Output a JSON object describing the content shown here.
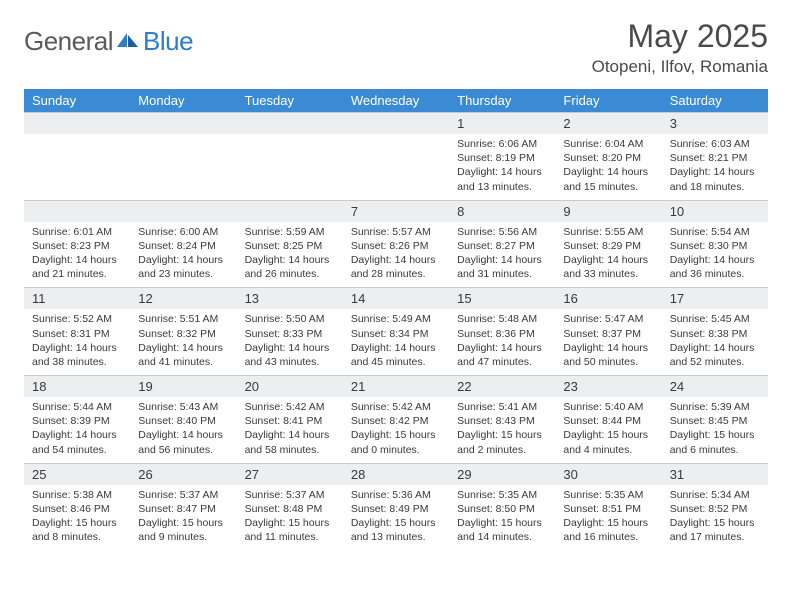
{
  "brand": {
    "part1": "General",
    "part2": "Blue"
  },
  "title": "May 2025",
  "location": "Otopeni, Ilfov, Romania",
  "colors": {
    "header_bg": "#3b8bd4",
    "header_text": "#ffffff",
    "band_bg": "#eceef0",
    "band_border": "#c6cbd1",
    "body_text": "#3a3a3a",
    "logo_gray": "#5a5a5a",
    "logo_blue": "#2d7dc9",
    "page_bg": "#ffffff"
  },
  "day_names": [
    "Sunday",
    "Monday",
    "Tuesday",
    "Wednesday",
    "Thursday",
    "Friday",
    "Saturday"
  ],
  "weeks": [
    [
      {
        "n": "",
        "sunrise": "",
        "sunset": "",
        "daylight": ""
      },
      {
        "n": "",
        "sunrise": "",
        "sunset": "",
        "daylight": ""
      },
      {
        "n": "",
        "sunrise": "",
        "sunset": "",
        "daylight": ""
      },
      {
        "n": "",
        "sunrise": "",
        "sunset": "",
        "daylight": ""
      },
      {
        "n": "1",
        "sunrise": "Sunrise: 6:06 AM",
        "sunset": "Sunset: 8:19 PM",
        "daylight": "Daylight: 14 hours and 13 minutes."
      },
      {
        "n": "2",
        "sunrise": "Sunrise: 6:04 AM",
        "sunset": "Sunset: 8:20 PM",
        "daylight": "Daylight: 14 hours and 15 minutes."
      },
      {
        "n": "3",
        "sunrise": "Sunrise: 6:03 AM",
        "sunset": "Sunset: 8:21 PM",
        "daylight": "Daylight: 14 hours and 18 minutes."
      }
    ],
    [
      {
        "n": "4",
        "sunrise": "Sunrise: 6:01 AM",
        "sunset": "Sunset: 8:23 PM",
        "daylight": "Daylight: 14 hours and 21 minutes."
      },
      {
        "n": "5",
        "sunrise": "Sunrise: 6:00 AM",
        "sunset": "Sunset: 8:24 PM",
        "daylight": "Daylight: 14 hours and 23 minutes."
      },
      {
        "n": "6",
        "sunrise": "Sunrise: 5:59 AM",
        "sunset": "Sunset: 8:25 PM",
        "daylight": "Daylight: 14 hours and 26 minutes."
      },
      {
        "n": "7",
        "sunrise": "Sunrise: 5:57 AM",
        "sunset": "Sunset: 8:26 PM",
        "daylight": "Daylight: 14 hours and 28 minutes."
      },
      {
        "n": "8",
        "sunrise": "Sunrise: 5:56 AM",
        "sunset": "Sunset: 8:27 PM",
        "daylight": "Daylight: 14 hours and 31 minutes."
      },
      {
        "n": "9",
        "sunrise": "Sunrise: 5:55 AM",
        "sunset": "Sunset: 8:29 PM",
        "daylight": "Daylight: 14 hours and 33 minutes."
      },
      {
        "n": "10",
        "sunrise": "Sunrise: 5:54 AM",
        "sunset": "Sunset: 8:30 PM",
        "daylight": "Daylight: 14 hours and 36 minutes."
      }
    ],
    [
      {
        "n": "11",
        "sunrise": "Sunrise: 5:52 AM",
        "sunset": "Sunset: 8:31 PM",
        "daylight": "Daylight: 14 hours and 38 minutes."
      },
      {
        "n": "12",
        "sunrise": "Sunrise: 5:51 AM",
        "sunset": "Sunset: 8:32 PM",
        "daylight": "Daylight: 14 hours and 41 minutes."
      },
      {
        "n": "13",
        "sunrise": "Sunrise: 5:50 AM",
        "sunset": "Sunset: 8:33 PM",
        "daylight": "Daylight: 14 hours and 43 minutes."
      },
      {
        "n": "14",
        "sunrise": "Sunrise: 5:49 AM",
        "sunset": "Sunset: 8:34 PM",
        "daylight": "Daylight: 14 hours and 45 minutes."
      },
      {
        "n": "15",
        "sunrise": "Sunrise: 5:48 AM",
        "sunset": "Sunset: 8:36 PM",
        "daylight": "Daylight: 14 hours and 47 minutes."
      },
      {
        "n": "16",
        "sunrise": "Sunrise: 5:47 AM",
        "sunset": "Sunset: 8:37 PM",
        "daylight": "Daylight: 14 hours and 50 minutes."
      },
      {
        "n": "17",
        "sunrise": "Sunrise: 5:45 AM",
        "sunset": "Sunset: 8:38 PM",
        "daylight": "Daylight: 14 hours and 52 minutes."
      }
    ],
    [
      {
        "n": "18",
        "sunrise": "Sunrise: 5:44 AM",
        "sunset": "Sunset: 8:39 PM",
        "daylight": "Daylight: 14 hours and 54 minutes."
      },
      {
        "n": "19",
        "sunrise": "Sunrise: 5:43 AM",
        "sunset": "Sunset: 8:40 PM",
        "daylight": "Daylight: 14 hours and 56 minutes."
      },
      {
        "n": "20",
        "sunrise": "Sunrise: 5:42 AM",
        "sunset": "Sunset: 8:41 PM",
        "daylight": "Daylight: 14 hours and 58 minutes."
      },
      {
        "n": "21",
        "sunrise": "Sunrise: 5:42 AM",
        "sunset": "Sunset: 8:42 PM",
        "daylight": "Daylight: 15 hours and 0 minutes."
      },
      {
        "n": "22",
        "sunrise": "Sunrise: 5:41 AM",
        "sunset": "Sunset: 8:43 PM",
        "daylight": "Daylight: 15 hours and 2 minutes."
      },
      {
        "n": "23",
        "sunrise": "Sunrise: 5:40 AM",
        "sunset": "Sunset: 8:44 PM",
        "daylight": "Daylight: 15 hours and 4 minutes."
      },
      {
        "n": "24",
        "sunrise": "Sunrise: 5:39 AM",
        "sunset": "Sunset: 8:45 PM",
        "daylight": "Daylight: 15 hours and 6 minutes."
      }
    ],
    [
      {
        "n": "25",
        "sunrise": "Sunrise: 5:38 AM",
        "sunset": "Sunset: 8:46 PM",
        "daylight": "Daylight: 15 hours and 8 minutes."
      },
      {
        "n": "26",
        "sunrise": "Sunrise: 5:37 AM",
        "sunset": "Sunset: 8:47 PM",
        "daylight": "Daylight: 15 hours and 9 minutes."
      },
      {
        "n": "27",
        "sunrise": "Sunrise: 5:37 AM",
        "sunset": "Sunset: 8:48 PM",
        "daylight": "Daylight: 15 hours and 11 minutes."
      },
      {
        "n": "28",
        "sunrise": "Sunrise: 5:36 AM",
        "sunset": "Sunset: 8:49 PM",
        "daylight": "Daylight: 15 hours and 13 minutes."
      },
      {
        "n": "29",
        "sunrise": "Sunrise: 5:35 AM",
        "sunset": "Sunset: 8:50 PM",
        "daylight": "Daylight: 15 hours and 14 minutes."
      },
      {
        "n": "30",
        "sunrise": "Sunrise: 5:35 AM",
        "sunset": "Sunset: 8:51 PM",
        "daylight": "Daylight: 15 hours and 16 minutes."
      },
      {
        "n": "31",
        "sunrise": "Sunrise: 5:34 AM",
        "sunset": "Sunset: 8:52 PM",
        "daylight": "Daylight: 15 hours and 17 minutes."
      }
    ]
  ]
}
